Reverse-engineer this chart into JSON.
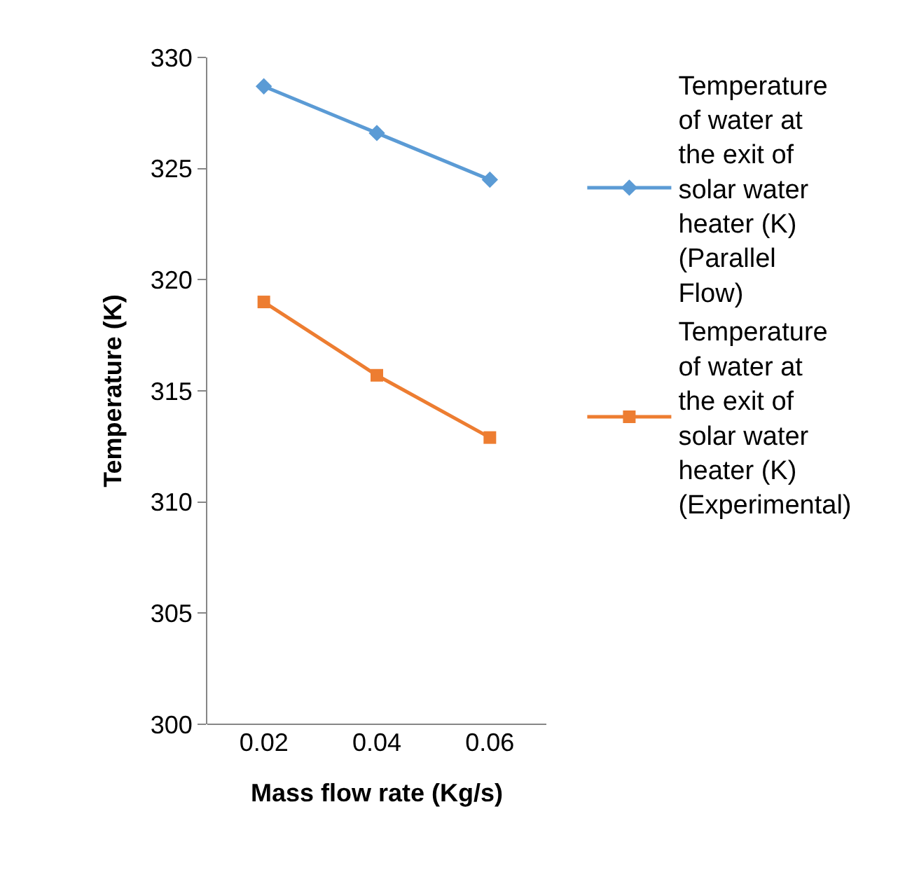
{
  "chart_data": {
    "type": "line",
    "xlabel": "Mass flow rate (Kg/s)",
    "ylabel": "Temperature (K)",
    "categories": [
      "0.02",
      "0.04",
      "0.06"
    ],
    "series": [
      {
        "name": "Temperature of water at the exit of solar water heater (K) (Parallel Flow)",
        "color": "#5b9bd5",
        "marker": "diamond",
        "values": [
          328.7,
          326.6,
          324.5
        ]
      },
      {
        "name": "Temperature of water at the exit of solar water heater (K) (Experimental)",
        "color": "#ed7d31",
        "marker": "square",
        "values": [
          319.0,
          315.7,
          312.9
        ]
      }
    ],
    "ylim": [
      300,
      330
    ],
    "yticks": [
      300,
      305,
      310,
      315,
      320,
      325,
      330
    ],
    "grid": false,
    "legend": "right",
    "line_style": "solid"
  }
}
